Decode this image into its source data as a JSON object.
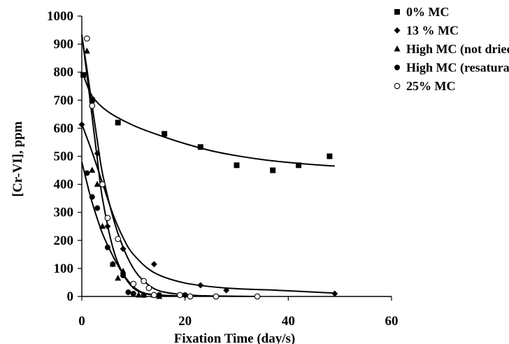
{
  "chart_data": {
    "type": "scatter",
    "xlabel": "Fixation Time (day/s)",
    "ylabel": "[Cr-VI], ppm",
    "xlim": [
      0,
      60
    ],
    "ylim": [
      0,
      1000
    ],
    "xticks": [
      0,
      20,
      40,
      60
    ],
    "yticks": [
      0,
      100,
      200,
      300,
      400,
      500,
      600,
      700,
      800,
      900,
      1000
    ],
    "grid": false,
    "legend_position": "top-right",
    "series": [
      {
        "name": "0% MC",
        "marker": "square",
        "points": [
          [
            0.3,
            790
          ],
          [
            2,
            700
          ],
          [
            7,
            620
          ],
          [
            16,
            580
          ],
          [
            23,
            533
          ],
          [
            30,
            468
          ],
          [
            37,
            450
          ],
          [
            42,
            468
          ],
          [
            48,
            500
          ]
        ],
        "fit": [
          [
            0.3,
            790
          ],
          [
            2,
            715
          ],
          [
            5,
            660
          ],
          [
            10,
            610
          ],
          [
            15,
            575
          ],
          [
            20,
            545
          ],
          [
            25,
            520
          ],
          [
            30,
            502
          ],
          [
            35,
            488
          ],
          [
            40,
            478
          ],
          [
            45,
            470
          ],
          [
            49,
            465
          ]
        ]
      },
      {
        "name": "13 % MC",
        "marker": "diamond",
        "points": [
          [
            0,
            613
          ],
          [
            3,
            510
          ],
          [
            5,
            250
          ],
          [
            8,
            170
          ],
          [
            14,
            115
          ],
          [
            23,
            40
          ],
          [
            28,
            22
          ],
          [
            49,
            10
          ]
        ],
        "fit": [
          [
            0,
            615
          ],
          [
            2,
            515
          ],
          [
            4,
            405
          ],
          [
            6,
            295
          ],
          [
            8,
            210
          ],
          [
            10,
            150
          ],
          [
            14,
            85
          ],
          [
            20,
            48
          ],
          [
            28,
            30
          ],
          [
            38,
            22
          ],
          [
            49,
            12
          ]
        ]
      },
      {
        "name": "High MC (not dried)",
        "marker": "triangle",
        "points": [
          [
            1,
            875
          ],
          [
            2,
            450
          ],
          [
            3,
            400
          ],
          [
            4,
            250
          ],
          [
            6,
            115
          ],
          [
            7,
            65
          ],
          [
            8,
            90
          ],
          [
            11,
            5
          ],
          [
            12,
            5
          ],
          [
            14,
            5
          ],
          [
            15,
            0
          ]
        ],
        "fit": [
          [
            0,
            935
          ],
          [
            1,
            790
          ],
          [
            2,
            640
          ],
          [
            3,
            490
          ],
          [
            4,
            350
          ],
          [
            6,
            175
          ],
          [
            8,
            80
          ],
          [
            10,
            30
          ],
          [
            12,
            12
          ],
          [
            15,
            5
          ],
          [
            20,
            2
          ]
        ]
      },
      {
        "name": "High MC (resaturated)",
        "marker": "circle",
        "points": [
          [
            1,
            440
          ],
          [
            2,
            355
          ],
          [
            3,
            315
          ],
          [
            5,
            175
          ],
          [
            6,
            115
          ],
          [
            8,
            75
          ],
          [
            9,
            15
          ],
          [
            10,
            10
          ],
          [
            12,
            5
          ],
          [
            15,
            5
          ],
          [
            20,
            5
          ]
        ],
        "fit": [
          [
            0,
            480
          ],
          [
            1,
            405
          ],
          [
            2,
            335
          ],
          [
            4,
            225
          ],
          [
            6,
            145
          ],
          [
            8,
            80
          ],
          [
            10,
            35
          ],
          [
            12,
            12
          ],
          [
            15,
            3
          ],
          [
            20,
            2
          ]
        ]
      },
      {
        "name": "25% MC",
        "marker": "open-circle",
        "points": [
          [
            1,
            920
          ],
          [
            2,
            680
          ],
          [
            4,
            400
          ],
          [
            5,
            280
          ],
          [
            7,
            205
          ],
          [
            10,
            45
          ],
          [
            12,
            55
          ],
          [
            13,
            30
          ],
          [
            14,
            5
          ],
          [
            19,
            5
          ],
          [
            21,
            0
          ],
          [
            26,
            0
          ],
          [
            34,
            0
          ]
        ],
        "fit": [
          [
            0,
            930
          ],
          [
            1,
            810
          ],
          [
            2,
            680
          ],
          [
            3,
            555
          ],
          [
            4,
            440
          ],
          [
            6,
            285
          ],
          [
            8,
            175
          ],
          [
            10,
            100
          ],
          [
            12,
            55
          ],
          [
            15,
            20
          ],
          [
            20,
            6
          ],
          [
            25,
            2
          ],
          [
            34,
            0
          ]
        ]
      }
    ]
  }
}
